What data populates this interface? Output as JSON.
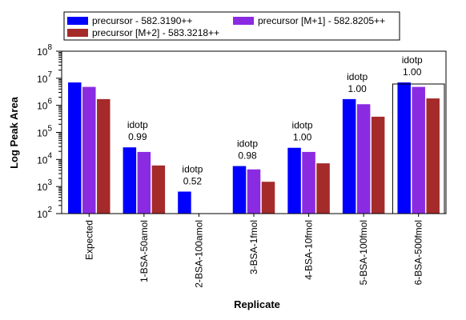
{
  "chart_data": {
    "type": "bar",
    "xlabel": "Replicate",
    "ylabel": "Log Peak Area",
    "yscale": "log",
    "ylim": [
      100,
      100000000
    ],
    "yticks": [
      {
        "value": 100,
        "base": "10",
        "exp": "2"
      },
      {
        "value": 1000,
        "base": "10",
        "exp": "3"
      },
      {
        "value": 10000,
        "base": "10",
        "exp": "4"
      },
      {
        "value": 100000,
        "base": "10",
        "exp": "5"
      },
      {
        "value": 1000000,
        "base": "10",
        "exp": "6"
      },
      {
        "value": 10000000,
        "base": "10",
        "exp": "7"
      },
      {
        "value": 100000000,
        "base": "10",
        "exp": "8"
      }
    ],
    "categories": [
      "Expected",
      "1-BSA-50amol",
      "2-BSA-100amol",
      "3-BSA-1fmol",
      "4-BSA-10fmol",
      "5-BSA-100fmol",
      "6-BSA-500fmol"
    ],
    "series": [
      {
        "name": "precursor - 582.3190++",
        "color": "#0000ff",
        "values": [
          7000000,
          28000,
          650,
          5700,
          27000,
          1700000,
          7000000
        ]
      },
      {
        "name": "precursor [M+1] - 582.8205++",
        "color": "#8a2be2",
        "values": [
          4800000,
          19000,
          null,
          4300,
          19000,
          1100000,
          4800000
        ]
      },
      {
        "name": "precursor [M+2] - 583.3218++",
        "color": "#a52a2a",
        "values": [
          1700000,
          6000,
          null,
          1500,
          7200,
          380000,
          1800000
        ]
      }
    ],
    "annotations": [
      {
        "category": "1-BSA-50amol",
        "label": "idotp",
        "value": "0.99"
      },
      {
        "category": "2-BSA-100amol",
        "label": "idotp",
        "value": "0.52"
      },
      {
        "category": "3-BSA-1fmol",
        "label": "idotp",
        "value": "0.98"
      },
      {
        "category": "4-BSA-10fmol",
        "label": "idotp",
        "value": "1.00"
      },
      {
        "category": "5-BSA-100fmol",
        "label": "idotp",
        "value": "1.00"
      },
      {
        "category": "6-BSA-500fmol",
        "label": "idotp",
        "value": "1.00"
      }
    ],
    "selected_category": "6-BSA-500fmol",
    "legend_position": "top"
  }
}
